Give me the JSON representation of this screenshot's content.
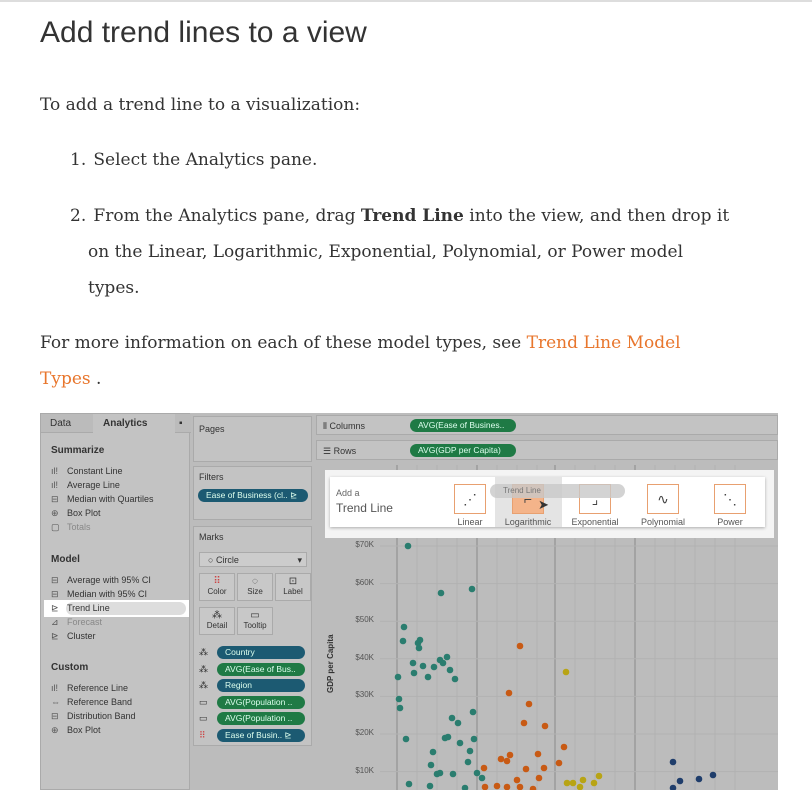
{
  "title": "Add trend lines to a view",
  "intro": "To add a trend line to a visualization:",
  "steps": [
    {
      "num": "1.",
      "text": "Select the Analytics pane."
    },
    {
      "num": "2.",
      "pre": "From the Analytics pane, drag ",
      "bold": "Trend Line",
      "post": " into the view, and then drop it",
      "line2": "on the Linear, Logarithmic, Exponential, Polynomial, or Power model",
      "line3": "types."
    }
  ],
  "more": {
    "pre": "For more information on each of these model types, see ",
    "link1": "Trend Line Model",
    "link2": "Types",
    "post": " ."
  },
  "screenshot": {
    "tabs": {
      "data": "Data",
      "analytics": "Analytics"
    },
    "summarize": {
      "heading": "Summarize",
      "items": [
        "Constant Line",
        "Average Line",
        "Median with Quartiles",
        "Box Plot",
        "Totals"
      ]
    },
    "model": {
      "heading": "Model",
      "items": [
        "Average with 95% CI",
        "Median with 95% CI",
        "Trend Line",
        "Forecast",
        "Cluster"
      ]
    },
    "custom": {
      "heading": "Custom",
      "items": [
        "Reference Line",
        "Reference Band",
        "Distribution Band",
        "Box Plot"
      ]
    },
    "pages": "Pages",
    "filters": {
      "label": "Filters",
      "pill": "Ease of Business (cl.. ⊵"
    },
    "marks": {
      "label": "Marks",
      "type": "Circle",
      "buttons": [
        "Color",
        "Size",
        "Label",
        "Detail",
        "Tooltip"
      ],
      "pills": [
        {
          "text": "Country",
          "color": "blue"
        },
        {
          "text": "AVG(Ease of Bus..",
          "color": "green"
        },
        {
          "text": "Region",
          "color": "blue"
        },
        {
          "text": "AVG(Population ..",
          "color": "green"
        },
        {
          "text": "AVG(Population ..",
          "color": "green"
        },
        {
          "text": "Ease of Busin.. ⊵",
          "color": "blue"
        }
      ]
    },
    "columns": {
      "label": "Columns",
      "pill": "AVG(Ease of Busines.."
    },
    "rows": {
      "label": "Rows",
      "pill": "AVG(GDP per Capita)"
    },
    "popup": {
      "add": "Add a",
      "title": "Trend Line",
      "drag_label": "Trend Line",
      "models": [
        "Linear",
        "Logarithmic",
        "Exponential",
        "Polynomial",
        "Power"
      ]
    },
    "yaxis": {
      "title": "GDP per Capita",
      "ticks": [
        "$70K",
        "$60K",
        "$50K",
        "$40K",
        "$30K",
        "$20K",
        "$10K"
      ]
    },
    "colors": {
      "teal": "#2a7d6f",
      "orange": "#c85a14",
      "yellow": "#b8a415",
      "navy": "#1f3d6b",
      "link": "#e8762d"
    }
  }
}
